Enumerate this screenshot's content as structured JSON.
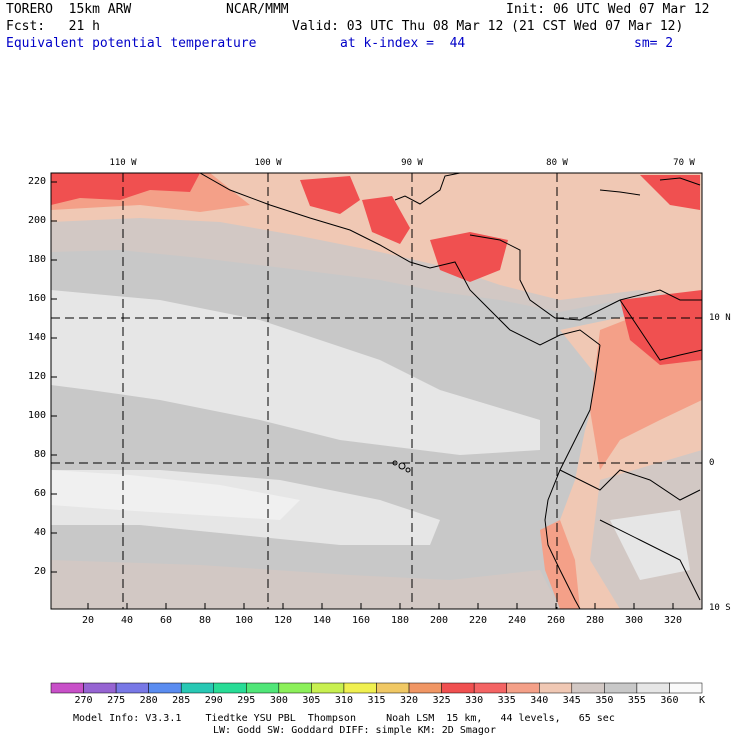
{
  "header": {
    "model": "TORERO  15km ARW",
    "org": "NCAR/MMM",
    "init": "Init: 06 UTC Wed 07 Mar 12",
    "fcst": "Fcst:   21 h",
    "valid": "Valid: 03 UTC Thu 08 Mar 12 (21 CST Wed 07 Mar 12)",
    "field": "Equivalent potential temperature",
    "kindex": "at k-index =  44",
    "smooth": "sm= 2"
  },
  "axes": {
    "y_ticks": [
      "220",
      "200",
      "180",
      "160",
      "140",
      "120",
      "100",
      "80",
      "60",
      "40",
      "20"
    ],
    "x_ticks": [
      "20",
      "40",
      "60",
      "80",
      "100",
      "120",
      "140",
      "160",
      "180",
      "200",
      "220",
      "240",
      "260",
      "280",
      "300",
      "320"
    ],
    "lon_labels": [
      "110 W",
      "100 W",
      "90 W",
      "80 W",
      "70 W"
    ],
    "lat_labels": [
      "10 N",
      "0",
      "10 S"
    ]
  },
  "colorbar": {
    "labels": [
      "270",
      "275",
      "280",
      "285",
      "290",
      "295",
      "300",
      "305",
      "310",
      "315",
      "320",
      "325",
      "330",
      "335",
      "340",
      "345",
      "350",
      "355",
      "360"
    ],
    "unit": "K",
    "colors": [
      "#c850c8",
      "#9664d2",
      "#7878e6",
      "#5a8cf0",
      "#28c8b4",
      "#28dc96",
      "#50e678",
      "#8cf05a",
      "#c8f050",
      "#f0f050",
      "#f0c864",
      "#f09664",
      "#f05050",
      "#f46464",
      "#f4a088",
      "#f0c8b4",
      "#d2c8c4",
      "#c8c8c8",
      "#e6e6e6",
      "#fafafa"
    ]
  },
  "footer": {
    "line1": "Model Info: V3.3.1    Tiedtke YSU PBL  Thompson     Noah LSM  15 km,   44 levels,   65 sec",
    "line2": "LW: Godd SW: Goddard DIFF: simple KM: 2D Smagor"
  }
}
